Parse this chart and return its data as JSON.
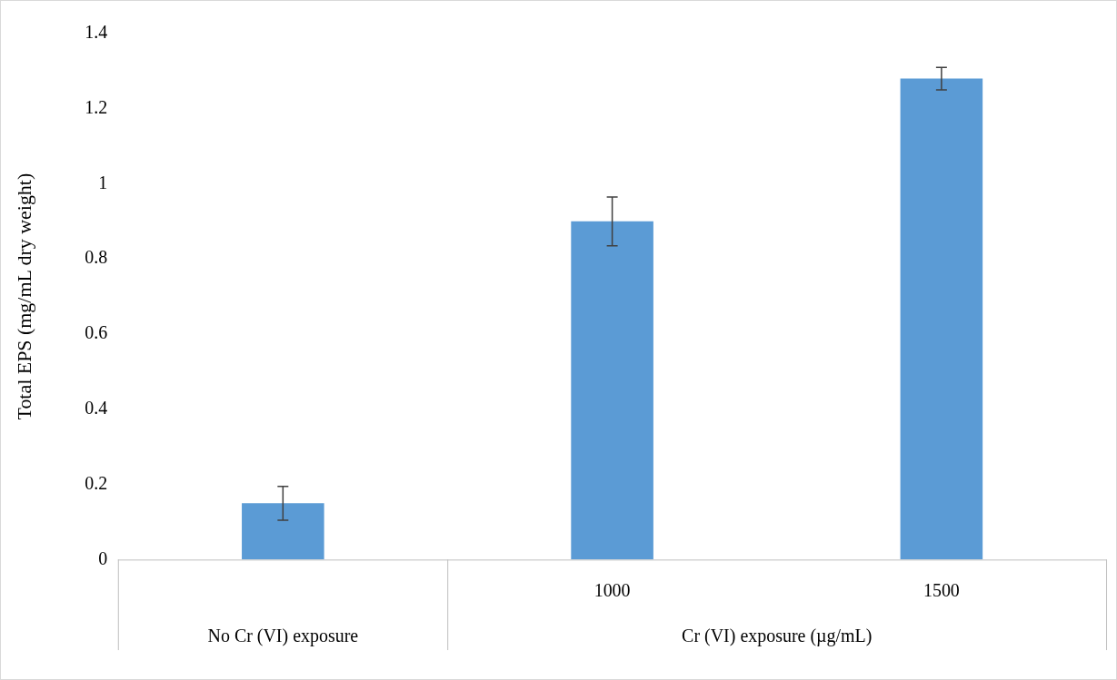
{
  "chart_data": {
    "type": "bar",
    "ylabel": "Total EPS (mg/mL dry weight)",
    "categories": [
      null,
      "1000",
      "1500"
    ],
    "values": [
      0.15,
      0.9,
      1.28
    ],
    "errors": [
      0.045,
      0.065,
      0.03
    ],
    "color": "#5b9bd5",
    "ylim": [
      0,
      1.4
    ],
    "yticks": [
      0,
      0.2,
      0.4,
      0.6,
      0.8,
      1,
      1.2,
      1.4
    ],
    "grid": false,
    "legend": false,
    "annotations": [
      "No Cr (VI) exposure",
      "Cr (VI) exposure (µg/mL)"
    ]
  }
}
